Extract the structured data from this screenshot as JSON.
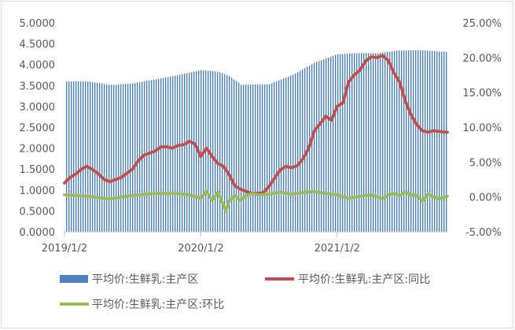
{
  "chart_data": {
    "type": "bar+line",
    "title": "",
    "xlabel": "",
    "ylabel": "",
    "left_axis": {
      "ylim": [
        0,
        5
      ],
      "tick_labels": [
        "0.0000",
        "0.5000",
        "1.0000",
        "1.5000",
        "2.0000",
        "2.5000",
        "3.0000",
        "3.5000",
        "4.0000",
        "4.5000",
        "5.0000"
      ]
    },
    "right_axis": {
      "ylim": [
        -5,
        25
      ],
      "unit": "%",
      "tick_labels": [
        "-5.00%",
        "0.00%",
        "5.00%",
        "10.00%",
        "15.00%",
        "20.00%",
        "25.00%"
      ]
    },
    "x_axis": {
      "tick_labels": [
        "2019/1/2",
        "2020/1/2",
        "2021/1/2"
      ],
      "tick_positions_months": [
        0,
        12,
        24
      ],
      "end_month": 33.7
    },
    "grid": false,
    "legend_position": "bottom",
    "series": [
      {
        "name": "平均价:生鲜乳:主产区",
        "kind": "bar",
        "axis": "left",
        "color": "#4f81bd",
        "x_months": [
          0,
          2,
          3.8,
          4.5,
          6,
          8,
          10,
          12,
          13.5,
          14.5,
          15.5,
          18,
          20,
          22,
          24,
          26,
          27.5,
          29,
          31,
          33.7
        ],
        "values": [
          3.6,
          3.6,
          3.52,
          3.52,
          3.55,
          3.65,
          3.75,
          3.87,
          3.83,
          3.72,
          3.52,
          3.53,
          3.75,
          4.05,
          4.25,
          4.28,
          4.27,
          4.33,
          4.35,
          4.3
        ]
      },
      {
        "name": "平均价:生鲜乳:主产区:同比",
        "kind": "line",
        "axis": "right",
        "color": "#c0504d",
        "x_months": [
          0,
          0.5,
          1,
          1.5,
          2,
          2.5,
          3,
          3.5,
          4,
          5,
          6,
          6.5,
          7,
          8,
          8.5,
          9,
          9.5,
          10,
          10.5,
          11,
          11.5,
          12,
          12.5,
          13,
          13.5,
          14,
          14.5,
          15,
          15.5,
          16,
          16.5,
          17,
          17.5,
          18,
          18.5,
          19,
          19.5,
          20,
          20.5,
          21,
          21.5,
          22,
          22.5,
          23,
          23.5,
          24,
          24.5,
          25,
          25.5,
          26,
          26.5,
          27,
          27.5,
          28,
          28.5,
          29,
          29.5,
          30,
          30.5,
          31,
          31.5,
          32,
          32.5,
          33,
          33.5,
          33.7
        ],
        "values": [
          2.0,
          2.8,
          3.3,
          4.0,
          4.4,
          3.9,
          3.3,
          2.5,
          2.2,
          2.8,
          4.0,
          5.2,
          6.0,
          6.6,
          7.2,
          7.2,
          7.0,
          7.4,
          7.5,
          8.0,
          7.6,
          5.8,
          7.0,
          5.8,
          4.8,
          4.4,
          3.2,
          1.6,
          1.1,
          0.8,
          0.5,
          0.5,
          0.6,
          1.5,
          2.7,
          3.9,
          4.4,
          4.2,
          4.5,
          5.5,
          7.0,
          9.5,
          10.5,
          11.6,
          11.0,
          13.0,
          13.5,
          16.5,
          17.5,
          18.2,
          19.5,
          20.1,
          20.0,
          20.3,
          19.6,
          17.8,
          16.5,
          13.8,
          11.8,
          10.4,
          9.5,
          9.3,
          9.5,
          9.4,
          9.3,
          9.3
        ]
      },
      {
        "name": "平均价:生鲜乳:主产区:环比",
        "kind": "line",
        "axis": "right",
        "color": "#9bbb59",
        "x_months": [
          0,
          2,
          4,
          6,
          8,
          10,
          11,
          12,
          12.5,
          13,
          13.5,
          14,
          14.2,
          14.5,
          15,
          15.5,
          16,
          16.5,
          17,
          18,
          19,
          20,
          21,
          22,
          23,
          24,
          25,
          26,
          27,
          28,
          28.5,
          29,
          29.5,
          30,
          30.5,
          31,
          31.5,
          32,
          32.5,
          33,
          33.7
        ],
        "values": [
          0.3,
          0.1,
          -0.3,
          0.2,
          0.5,
          0.5,
          0.3,
          -0.2,
          0.8,
          -0.5,
          0.7,
          -1.2,
          -2.0,
          -0.6,
          0.2,
          -0.5,
          0.2,
          0.5,
          0.3,
          0.4,
          0.7,
          0.4,
          0.6,
          0.8,
          0.5,
          0.3,
          -0.2,
          0.1,
          0.3,
          -0.3,
          0.3,
          0.5,
          0.2,
          0.7,
          0.3,
          0.2,
          -0.6,
          0.4,
          0.0,
          -0.3,
          0.1
        ]
      }
    ]
  }
}
